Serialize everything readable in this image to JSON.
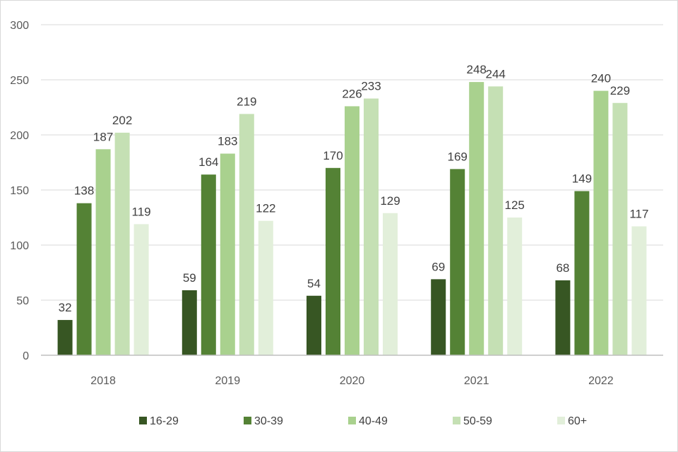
{
  "chart_data": {
    "type": "bar",
    "title": "",
    "xlabel": "",
    "ylabel": "",
    "categories": [
      "2018",
      "2019",
      "2020",
      "2021",
      "2022"
    ],
    "ylim": [
      0,
      300
    ],
    "yticks": [
      0,
      50,
      100,
      150,
      200,
      250,
      300
    ],
    "grid": true,
    "legend_position": "bottom",
    "series": [
      {
        "name": "16-29",
        "color": "#375623",
        "values": [
          32,
          59,
          54,
          69,
          68
        ]
      },
      {
        "name": "30-39",
        "color": "#548235",
        "values": [
          138,
          164,
          170,
          169,
          149
        ]
      },
      {
        "name": "40-49",
        "color": "#a9d18e",
        "values": [
          187,
          183,
          226,
          248,
          240
        ]
      },
      {
        "name": "50-59",
        "color": "#c5e0b4",
        "values": [
          202,
          219,
          233,
          244,
          229
        ]
      },
      {
        "name": "60+",
        "color": "#e2efda",
        "values": [
          119,
          122,
          129,
          125,
          117
        ]
      }
    ]
  }
}
